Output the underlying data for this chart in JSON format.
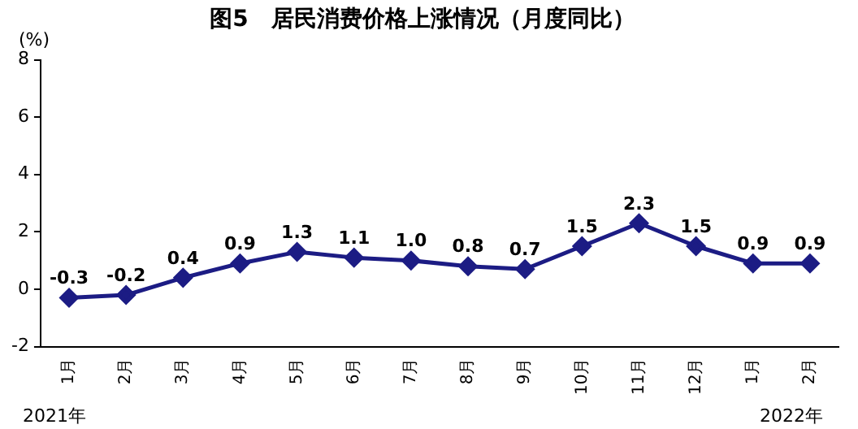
{
  "chart_data": {
    "type": "line",
    "title": "图5　居民消费价格上涨情况（月度同比）",
    "ylabel": "(%)",
    "categories": [
      "1月",
      "2月",
      "3月",
      "4月",
      "5月",
      "6月",
      "7月",
      "8月",
      "9月",
      "10月",
      "11月",
      "12月",
      "1月",
      "2月"
    ],
    "series": [
      {
        "color": "#1c1c84",
        "values": [
          -0.3,
          -0.2,
          0.4,
          0.9,
          1.3,
          1.1,
          1.0,
          0.8,
          0.7,
          1.5,
          2.3,
          1.5,
          0.9,
          0.9
        ],
        "value_labels": [
          "-0.3",
          "-0.2",
          "0.4",
          "0.9",
          "1.3",
          "1.1",
          "1.0",
          "0.8",
          "0.7",
          "1.5",
          "2.3",
          "1.5",
          "0.9",
          "0.9"
        ]
      }
    ],
    "ylim": [
      -2,
      8
    ],
    "yticks": [
      -2,
      0,
      2,
      4,
      6,
      8
    ],
    "grid": false,
    "legend": false,
    "marker": "diamond",
    "line_style": "solid",
    "annotations": [
      "2021年",
      "2022年"
    ]
  }
}
